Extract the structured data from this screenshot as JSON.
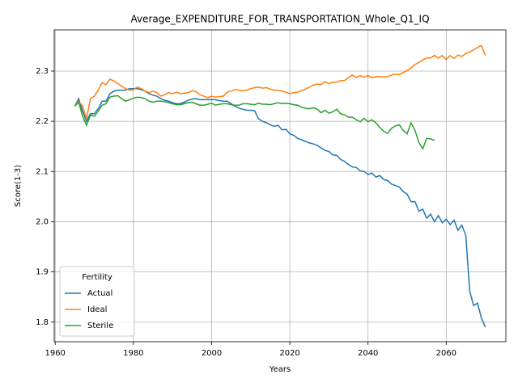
{
  "chart_data": {
    "type": "line",
    "title": "Average_EXPENDITURE_FOR_TRANSPORTATION_Whole_Q1_IQ",
    "x_label": "Years",
    "y_label": "Score(1-3)",
    "x": [
      1965,
      1966,
      1967,
      1968,
      1969,
      1970,
      1971,
      1972,
      1973,
      1974,
      1975,
      1976,
      1977,
      1978,
      1979,
      1980,
      1981,
      1982,
      1983,
      1984,
      1985,
      1986,
      1987,
      1988,
      1989,
      1990,
      1991,
      1992,
      1993,
      1994,
      1995,
      1996,
      1997,
      1998,
      1999,
      2000,
      2001,
      2002,
      2003,
      2004,
      2005,
      2006,
      2007,
      2008,
      2009,
      2010,
      2011,
      2012,
      2013,
      2014,
      2015,
      2016,
      2017,
      2018,
      2019,
      2020,
      2021,
      2022,
      2023,
      2024,
      2025,
      2026,
      2027,
      2028,
      2029,
      2030,
      2031,
      2032,
      2033,
      2034,
      2035,
      2036,
      2037,
      2038,
      2039,
      2040,
      2041,
      2042,
      2043,
      2044,
      2045,
      2046,
      2047,
      2048,
      2049,
      2050,
      2051,
      2052,
      2053,
      2054,
      2055,
      2056,
      2057,
      2058,
      2059,
      2060,
      2061,
      2062,
      2063,
      2064,
      2065,
      2066,
      2067,
      2068,
      2069,
      2070
    ],
    "series": [
      {
        "name": "Actual",
        "color": "#1f77b4",
        "values": [
          2.23,
          2.245,
          2.22,
          2.2,
          2.215,
          2.215,
          2.225,
          2.24,
          2.24,
          2.255,
          2.26,
          2.262,
          2.262,
          2.262,
          2.265,
          2.265,
          2.265,
          2.263,
          2.26,
          2.255,
          2.252,
          2.25,
          2.245,
          2.242,
          2.24,
          2.237,
          2.235,
          2.235,
          2.238,
          2.242,
          2.244,
          2.245,
          2.243,
          2.243,
          2.243,
          2.243,
          2.243,
          2.241,
          2.24,
          2.24,
          2.235,
          2.23,
          2.226,
          2.224,
          2.222,
          2.222,
          2.221,
          2.205,
          2.2,
          2.197,
          2.193,
          2.19,
          2.192,
          2.183,
          2.184,
          2.175,
          2.172,
          2.166,
          2.163,
          2.16,
          2.157,
          2.155,
          2.152,
          2.147,
          2.142,
          2.14,
          2.133,
          2.132,
          2.124,
          2.12,
          2.114,
          2.109,
          2.108,
          2.101,
          2.1,
          2.094,
          2.097,
          2.089,
          2.092,
          2.084,
          2.082,
          2.075,
          2.072,
          2.069,
          2.06,
          2.055,
          2.04,
          2.04,
          2.021,
          2.025,
          2.007,
          2.015,
          2.0,
          2.012,
          1.998,
          2.005,
          1.994,
          2.003,
          1.983,
          1.993,
          1.973,
          1.862,
          1.833,
          1.838,
          1.808,
          1.79
        ]
      },
      {
        "name": "Ideal",
        "color": "#ff7f0e",
        "values": [
          2.23,
          2.24,
          2.23,
          2.205,
          2.245,
          2.25,
          2.262,
          2.277,
          2.273,
          2.284,
          2.28,
          2.275,
          2.27,
          2.265,
          2.262,
          2.263,
          2.268,
          2.265,
          2.26,
          2.257,
          2.26,
          2.257,
          2.25,
          2.253,
          2.257,
          2.255,
          2.258,
          2.255,
          2.256,
          2.257,
          2.261,
          2.259,
          2.253,
          2.25,
          2.247,
          2.25,
          2.248,
          2.249,
          2.25,
          2.258,
          2.26,
          2.263,
          2.262,
          2.261,
          2.262,
          2.265,
          2.267,
          2.268,
          2.266,
          2.267,
          2.264,
          2.262,
          2.262,
          2.26,
          2.258,
          2.255,
          2.257,
          2.258,
          2.261,
          2.264,
          2.268,
          2.272,
          2.274,
          2.273,
          2.279,
          2.275,
          2.278,
          2.278,
          2.281,
          2.281,
          2.287,
          2.292,
          2.287,
          2.291,
          2.288,
          2.291,
          2.287,
          2.289,
          2.289,
          2.288,
          2.289,
          2.292,
          2.294,
          2.293,
          2.297,
          2.301,
          2.306,
          2.313,
          2.317,
          2.322,
          2.326,
          2.326,
          2.331,
          2.326,
          2.331,
          2.323,
          2.331,
          2.325,
          2.332,
          2.329,
          2.335,
          2.338,
          2.342,
          2.347,
          2.351,
          2.331
        ]
      },
      {
        "name": "Sterile",
        "color": "#2ca02c",
        "values": [
          2.23,
          2.238,
          2.21,
          2.192,
          2.212,
          2.21,
          2.22,
          2.232,
          2.235,
          2.248,
          2.25,
          2.251,
          2.245,
          2.24,
          2.243,
          2.246,
          2.248,
          2.247,
          2.245,
          2.24,
          2.238,
          2.24,
          2.24,
          2.239,
          2.237,
          2.235,
          2.233,
          2.233,
          2.235,
          2.237,
          2.238,
          2.235,
          2.232,
          2.232,
          2.234,
          2.236,
          2.232,
          2.234,
          2.235,
          2.235,
          2.233,
          2.232,
          2.232,
          2.235,
          2.235,
          2.234,
          2.233,
          2.236,
          2.234,
          2.234,
          2.233,
          2.235,
          2.237,
          2.235,
          2.236,
          2.235,
          2.233,
          2.232,
          2.228,
          2.226,
          2.225,
          2.227,
          2.224,
          2.217,
          2.222,
          2.216,
          2.219,
          2.224,
          2.215,
          2.213,
          2.208,
          2.208,
          2.203,
          2.199,
          2.206,
          2.199,
          2.203,
          2.197,
          2.188,
          2.18,
          2.176,
          2.186,
          2.191,
          2.193,
          2.182,
          2.175,
          2.197,
          2.182,
          2.158,
          2.145,
          2.166,
          2.165,
          2.162,
          null,
          null,
          null,
          null,
          null,
          null,
          null,
          null,
          null,
          null,
          null,
          null,
          null
        ]
      }
    ],
    "xlim": [
      1959.75,
      2075.25
    ],
    "xticks": [
      1960,
      1980,
      2000,
      2020,
      2040,
      2060
    ],
    "ylim": [
      1.761,
      2.382
    ],
    "yticks": [
      1.8,
      1.9,
      {
        "value": 2,
        "label": "2.0"
      },
      2.1,
      2.2,
      2.3
    ],
    "grid": true,
    "legend_title": "Fertility",
    "legend_position": "lower left"
  }
}
